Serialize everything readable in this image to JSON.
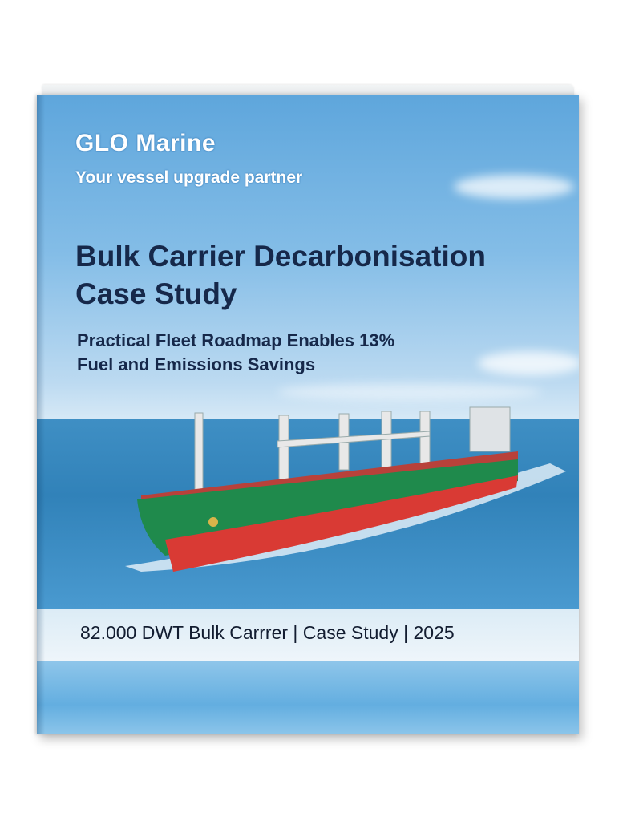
{
  "brand": {
    "name": "GLO Marine",
    "tagline": "Your vessel upgrade partner"
  },
  "cover": {
    "title_line1": "Bulk Carrier Decarbonisation",
    "title_line2": "Case Study",
    "subtitle_line1": "Practical Fleet Roadmap Enables 13%",
    "subtitle_line2": "Fuel and Emissions Savings",
    "footer": "82.000 DWT Bulk Carrrer | Case Study | 2025"
  },
  "colors": {
    "title": "#16284a",
    "hull_green": "#1f8a4c",
    "hull_red": "#d93a34",
    "sky": "#5ea6dc"
  }
}
